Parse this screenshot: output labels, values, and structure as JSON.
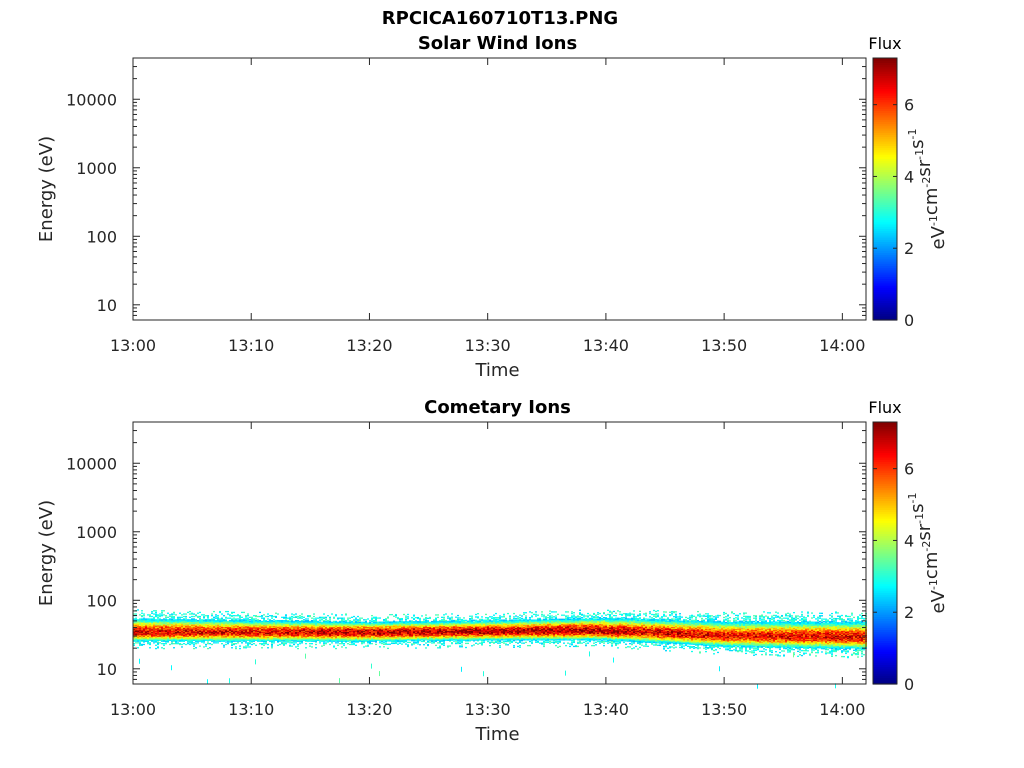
{
  "figure": {
    "title": "RPCICA160710T13.PNG"
  },
  "chart_data": [
    {
      "type": "heatmap",
      "title": "Solar Wind Ions",
      "xlabel": "Time",
      "ylabel": "Energy (eV)",
      "x_ticks": [
        "13:00",
        "13:10",
        "13:20",
        "13:30",
        "13:40",
        "13:50",
        "14:00"
      ],
      "x_range": [
        "13:00",
        "14:02"
      ],
      "y_scale": "log",
      "y_ticks": [
        "10",
        "100",
        "1000",
        "10000"
      ],
      "y_range": [
        6,
        40000
      ],
      "colorbar": {
        "title": "Flux",
        "label": "eV-1cm-2sr-1s-1",
        "label_parts": [
          {
            "base": "eV",
            "sup": "-1"
          },
          {
            "base": "cm",
            "sup": "-2"
          },
          {
            "base": "sr",
            "sup": "-1"
          },
          {
            "base": "s",
            "sup": "-1"
          }
        ],
        "ticks": [
          "0",
          "2",
          "4",
          "6"
        ],
        "range": [
          0,
          7.3
        ],
        "colormap": "jet"
      },
      "band": null
    },
    {
      "type": "heatmap",
      "title": "Cometary Ions",
      "xlabel": "Time",
      "ylabel": "Energy (eV)",
      "x_ticks": [
        "13:00",
        "13:10",
        "13:20",
        "13:30",
        "13:40",
        "13:50",
        "14:00"
      ],
      "x_range": [
        "13:00",
        "14:02"
      ],
      "y_scale": "log",
      "y_ticks": [
        "10",
        "100",
        "1000",
        "10000"
      ],
      "y_range": [
        6,
        40000
      ],
      "colorbar": {
        "title": "Flux",
        "label": "eV-1cm-2sr-1s-1",
        "label_parts": [
          {
            "base": "eV",
            "sup": "-1"
          },
          {
            "base": "cm",
            "sup": "-2"
          },
          {
            "base": "sr",
            "sup": "-1"
          },
          {
            "base": "s",
            "sup": "-1"
          }
        ],
        "ticks": [
          "0",
          "2",
          "4",
          "6"
        ],
        "range": [
          0,
          7.3
        ],
        "colormap": "jet"
      },
      "band": {
        "description_points": [
          {
            "time": "13:00",
            "center_eV": 34,
            "low_eV": 22,
            "high_eV": 65,
            "peak_flux": 6.6
          },
          {
            "time": "13:10",
            "center_eV": 34,
            "low_eV": 22,
            "high_eV": 60,
            "peak_flux": 6.5
          },
          {
            "time": "13:20",
            "center_eV": 34,
            "low_eV": 22,
            "high_eV": 55,
            "peak_flux": 6.8
          },
          {
            "time": "13:30",
            "center_eV": 35,
            "low_eV": 23,
            "high_eV": 58,
            "peak_flux": 6.9
          },
          {
            "time": "13:40",
            "center_eV": 36,
            "low_eV": 23,
            "high_eV": 65,
            "peak_flux": 6.8
          },
          {
            "time": "13:50",
            "center_eV": 30,
            "low_eV": 18,
            "high_eV": 60,
            "peak_flux": 6.4
          },
          {
            "time": "14:02",
            "center_eV": 29,
            "low_eV": 16,
            "high_eV": 60,
            "peak_flux": 6.5
          }
        ]
      }
    }
  ]
}
